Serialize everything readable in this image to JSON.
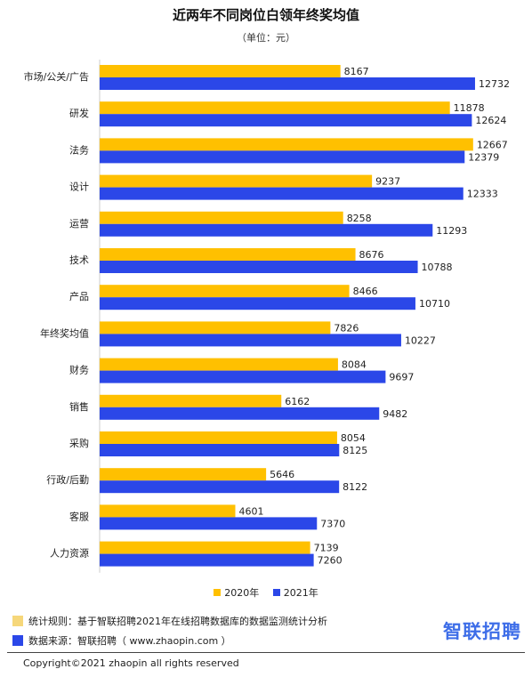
{
  "chart_data": {
    "type": "bar",
    "orientation": "horizontal",
    "title": "近两年不同岗位白领年终奖均值",
    "subtitle": "（单位：元）",
    "categories": [
      "市场/公关/广告",
      "研发",
      "法务",
      "设计",
      "运营",
      "技术",
      "产品",
      "年终奖均值",
      "财务",
      "销售",
      "采购",
      "行政/后勤",
      "客服",
      "人力资源"
    ],
    "series": [
      {
        "name": "2020年",
        "color": "#ffc000",
        "values": [
          8167,
          11878,
          12667,
          9237,
          8258,
          8676,
          8466,
          7826,
          8084,
          6162,
          8054,
          5646,
          4601,
          7139
        ]
      },
      {
        "name": "2021年",
        "color": "#2b47e8",
        "values": [
          12732,
          12624,
          12379,
          12333,
          11293,
          10788,
          10710,
          10227,
          9697,
          9482,
          8125,
          8122,
          7370,
          7260
        ]
      }
    ],
    "xlim": [
      0,
      14000
    ],
    "grid": false,
    "legend_position": "bottom"
  },
  "notes": [
    {
      "color": "#f6d77a",
      "text": "统计规则：基于智联招聘2021年在线招聘数据库的数据监测统计分析"
    },
    {
      "color": "#2b47e8",
      "text": "数据来源：智联招聘（ www.zhaopin.com ）"
    }
  ],
  "logo_text": "智联招聘",
  "copyright": "Copyright©2021 zhaopin all rights reserved"
}
